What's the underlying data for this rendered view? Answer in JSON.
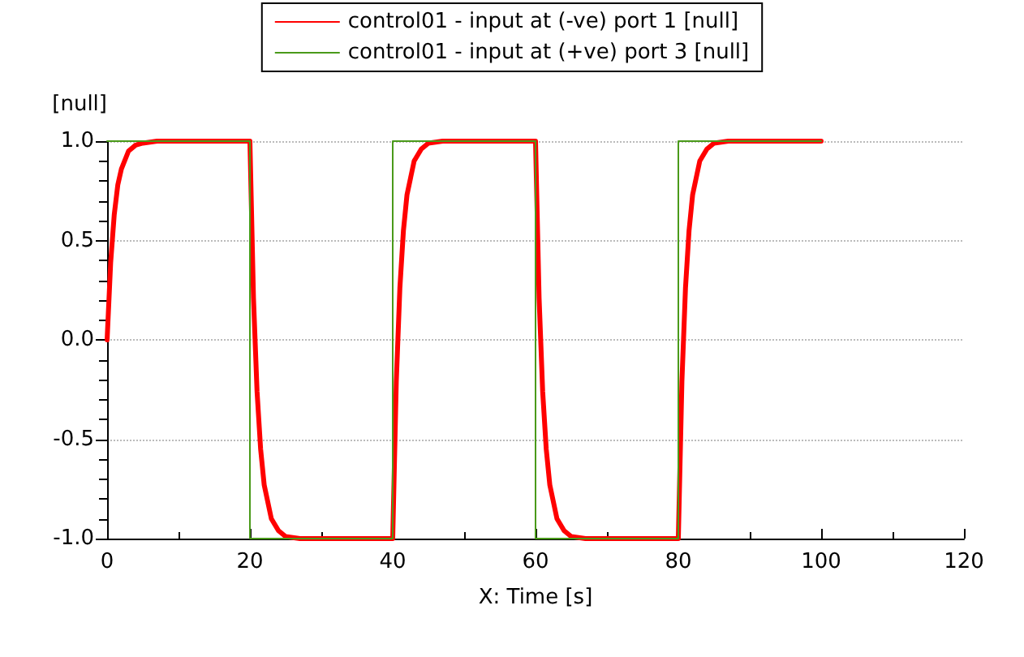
{
  "chart_data": {
    "type": "line",
    "xlabel": "X: Time [s]",
    "ylabel": "[null]",
    "xlim": [
      0,
      120
    ],
    "xticks": [
      0,
      20,
      40,
      60,
      80,
      100,
      120
    ],
    "ylim": [
      -1,
      1
    ],
    "yticks": [
      {
        "value": -1,
        "label": "-1.0"
      },
      -0.5,
      {
        "value": 0,
        "label": "0.0"
      },
      0.5,
      {
        "value": 1,
        "label": "1.0"
      }
    ],
    "grid": "y",
    "legend": "top",
    "marker": "none",
    "line_style": "solid",
    "series": [
      {
        "name": "control01 - input at (-ve) port 1 [null]",
        "color": "#ff0000",
        "x": [
          0,
          0.5,
          1,
          1.5,
          2,
          3,
          4,
          5,
          7,
          20,
          20.5,
          21,
          21.5,
          22,
          23,
          24,
          25,
          27,
          40,
          40.5,
          41,
          41.5,
          42,
          43,
          44,
          45,
          47,
          60,
          60.5,
          61,
          61.5,
          62,
          63,
          64,
          65,
          67,
          80,
          80.5,
          81,
          81.5,
          82,
          83,
          84,
          85,
          87,
          100
        ],
        "values": [
          0,
          0.39,
          0.63,
          0.78,
          0.86,
          0.95,
          0.98,
          0.99,
          1.0,
          1.0,
          0.21,
          -0.26,
          -0.55,
          -0.73,
          -0.9,
          -0.96,
          -0.99,
          -1.0,
          -1.0,
          -0.21,
          0.26,
          0.55,
          0.73,
          0.9,
          0.96,
          0.99,
          1.0,
          1.0,
          0.21,
          -0.26,
          -0.55,
          -0.73,
          -0.9,
          -0.96,
          -0.99,
          -1.0,
          -1.0,
          -0.21,
          0.26,
          0.55,
          0.73,
          0.9,
          0.96,
          0.99,
          1.0,
          1.0
        ]
      },
      {
        "name": "control01 - input at (+ve) port 3 [null]",
        "color": "#4a9a1a",
        "x": [
          0,
          20,
          20,
          40,
          40,
          60,
          60,
          80,
          80,
          100
        ],
        "values": [
          1,
          1,
          -1,
          -1,
          1,
          1,
          -1,
          -1,
          1,
          1
        ]
      }
    ]
  }
}
